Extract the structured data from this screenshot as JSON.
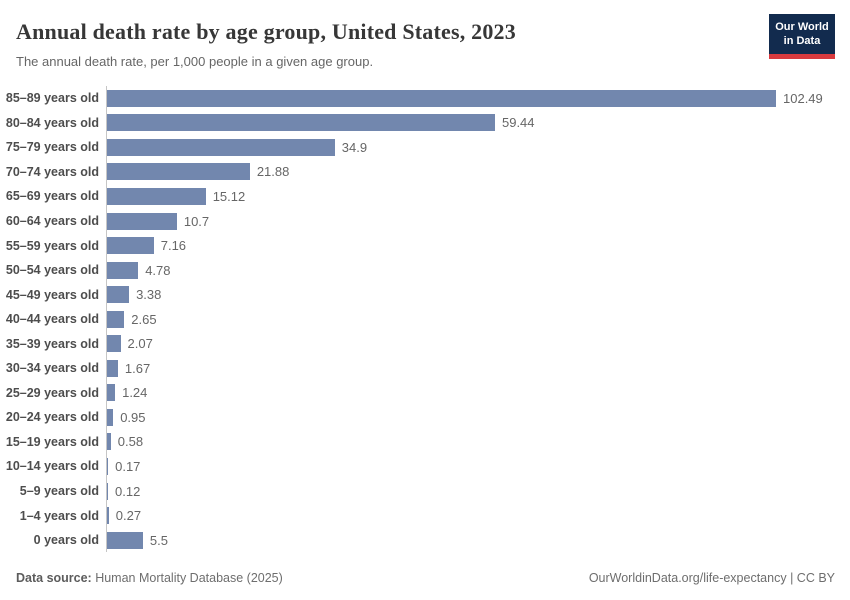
{
  "header": {
    "title": "Annual death rate by age group, United States, 2023",
    "subtitle": "The annual death rate, per 1,000 people in a given age group."
  },
  "logo": {
    "line1": "Our World",
    "line2": "in Data",
    "bg_color": "#122b4e",
    "accent_color": "#d93a3e"
  },
  "chart_data": {
    "type": "bar",
    "orientation": "horizontal",
    "title": "Annual death rate by age group, United States, 2023",
    "subtitle": "The annual death rate, per 1,000 people in a given age group.",
    "categories": [
      "85–89 years old",
      "80–84 years old",
      "75–79 years old",
      "70–74 years old",
      "65–69 years old",
      "60–64 years old",
      "55–59 years old",
      "50–54 years old",
      "45–49 years old",
      "40–44 years old",
      "35–39 years old",
      "30–34 years old",
      "25–29 years old",
      "20–24 years old",
      "15–19 years old",
      "10–14 years old",
      "5–9 years old",
      "1–4 years old",
      "0 years old"
    ],
    "values": [
      102.49,
      59.44,
      34.9,
      21.88,
      15.12,
      10.7,
      7.16,
      4.78,
      3.38,
      2.65,
      2.07,
      1.67,
      1.24,
      0.95,
      0.58,
      0.17,
      0.12,
      0.27,
      5.5
    ],
    "value_labels": [
      "102.49",
      "59.44",
      "34.9",
      "21.88",
      "15.12",
      "10.7",
      "7.16",
      "4.78",
      "3.38",
      "2.65",
      "2.07",
      "1.67",
      "1.24",
      "0.95",
      "0.58",
      "0.17",
      "0.12",
      "0.27",
      "5.5"
    ],
    "xlim": [
      0,
      105
    ],
    "bar_color": "#7287ae",
    "axis_line_color": "#c6c6c6",
    "grid": false,
    "legend": false,
    "value_labels_shown": true
  },
  "footer": {
    "source_label": "Data source:",
    "source_value": " Human Mortality Database (2025)",
    "url": "OurWorldinData.org/life-expectancy",
    "license": " | CC BY"
  }
}
